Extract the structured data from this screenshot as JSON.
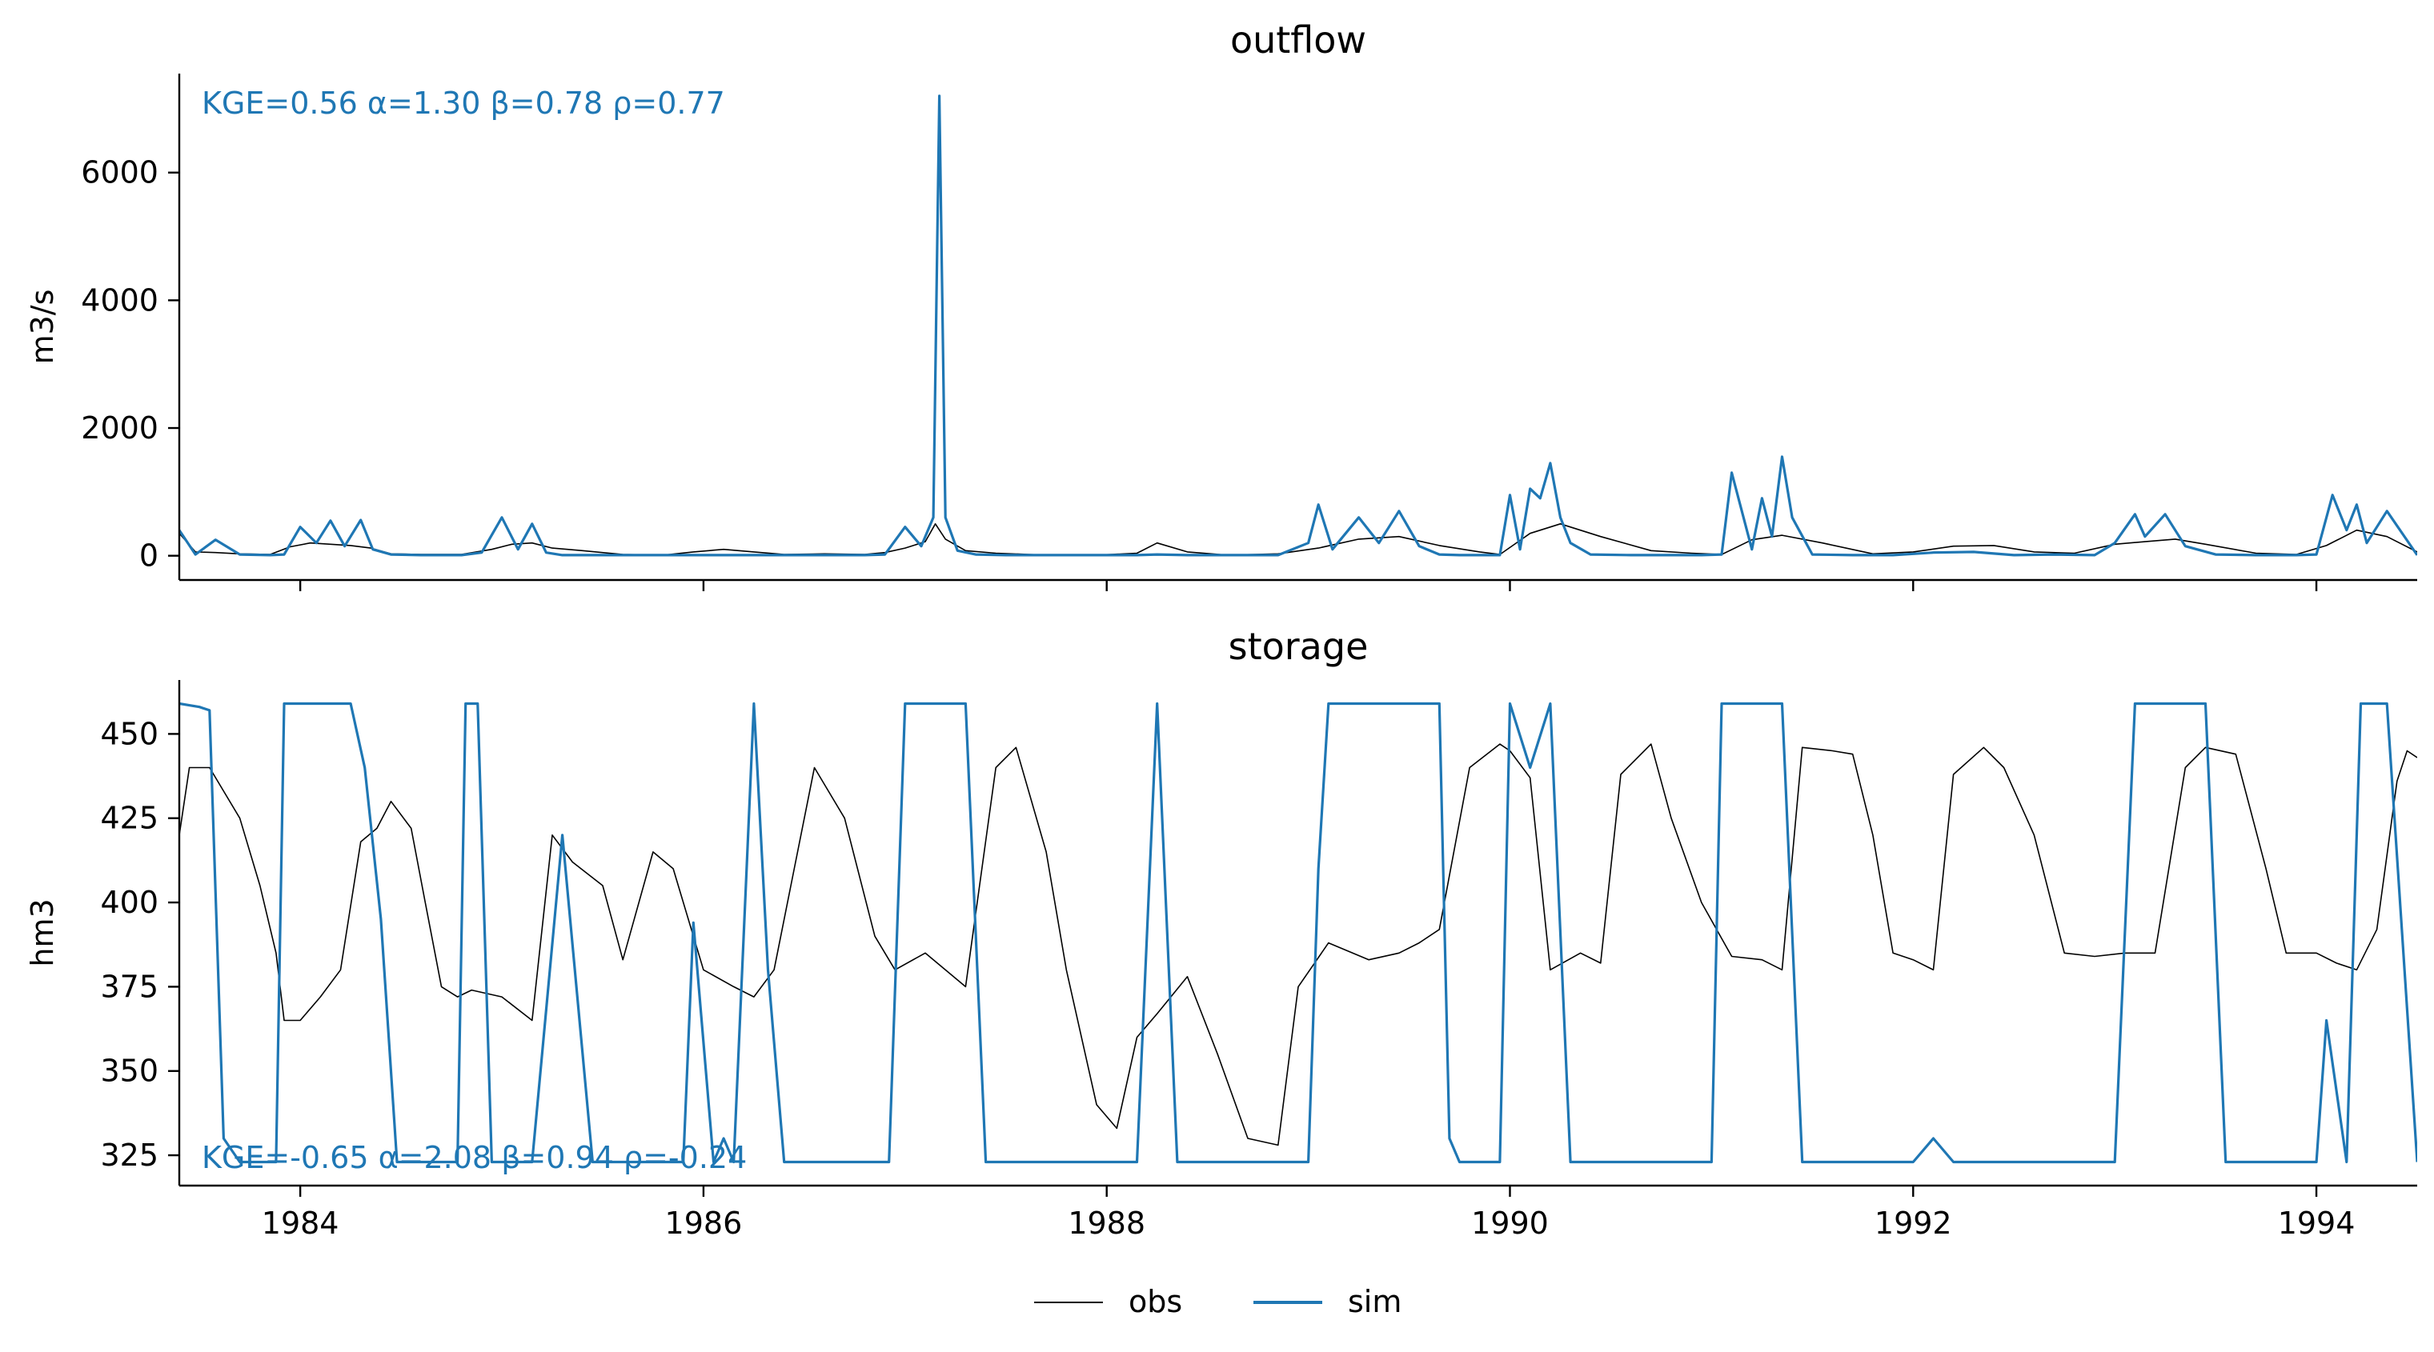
{
  "figure": {
    "legend": {
      "placement": "bottom-center",
      "entries": [
        {
          "label": "obs",
          "color": "#000000"
        },
        {
          "label": "sim",
          "color": "#1f77b4"
        }
      ]
    },
    "colors": {
      "obs": "#000000",
      "sim": "#1f77b4",
      "axis": "#000000",
      "text": "#000000"
    }
  },
  "chart_data": [
    {
      "type": "line",
      "title": "outflow",
      "xlabel": "",
      "ylabel": "m3/s",
      "annotation": "KGE=0.56  α=1.30  β=0.78  ρ=0.77",
      "annotation_placement": "top-left",
      "xlim": [
        1983.4,
        1994.5
      ],
      "ylim": [
        -380,
        7550
      ],
      "yticks": [
        0,
        2000,
        4000,
        6000
      ],
      "xticks": [
        1984,
        1986,
        1988,
        1990,
        1992,
        1994
      ],
      "show_xtick_labels": false,
      "grid": false,
      "series": [
        {
          "name": "obs",
          "color": "#000000",
          "x": [
            1983.4,
            1983.48,
            1983.58,
            1983.7,
            1983.85,
            1983.95,
            1984.05,
            1984.15,
            1984.25,
            1984.35,
            1984.45,
            1984.6,
            1984.8,
            1984.95,
            1985.05,
            1985.15,
            1985.25,
            1985.4,
            1985.6,
            1985.8,
            1985.95,
            1986.1,
            1986.25,
            1986.4,
            1986.6,
            1986.8,
            1986.9,
            1987.0,
            1987.1,
            1987.15,
            1987.2,
            1987.3,
            1987.45,
            1987.7,
            1987.95,
            1988.15,
            1988.25,
            1988.4,
            1988.6,
            1988.85,
            1989.05,
            1989.25,
            1989.45,
            1989.65,
            1989.85,
            1989.95,
            1990.1,
            1990.25,
            1990.45,
            1990.7,
            1990.9,
            1991.05,
            1991.2,
            1991.35,
            1991.55,
            1991.8,
            1992.0,
            1992.2,
            1992.4,
            1992.6,
            1992.8,
            1993.0,
            1993.15,
            1993.3,
            1993.45,
            1993.7,
            1993.9,
            1994.05,
            1994.2,
            1994.35,
            1994.5
          ],
          "y": [
            350,
            60,
            50,
            30,
            20,
            140,
            200,
            180,
            160,
            120,
            30,
            20,
            20,
            100,
            180,
            200,
            120,
            80,
            20,
            10,
            60,
            100,
            60,
            20,
            30,
            20,
            50,
            120,
            220,
            500,
            260,
            80,
            40,
            10,
            10,
            40,
            200,
            60,
            10,
            30,
            120,
            260,
            300,
            160,
            60,
            20,
            350,
            500,
            300,
            80,
            40,
            20,
            250,
            320,
            200,
            30,
            60,
            150,
            160,
            60,
            40,
            180,
            220,
            260,
            180,
            40,
            20,
            160,
            400,
            300,
            60
          ]
        },
        {
          "name": "sim",
          "color": "#1f77b4",
          "x": [
            1983.4,
            1983.48,
            1983.58,
            1983.7,
            1983.85,
            1983.92,
            1984.0,
            1984.08,
            1984.15,
            1984.22,
            1984.3,
            1984.36,
            1984.45,
            1984.6,
            1984.8,
            1984.9,
            1985.0,
            1985.08,
            1985.15,
            1985.22,
            1985.3,
            1985.4,
            1985.6,
            1985.8,
            1985.95,
            1986.1,
            1986.25,
            1986.4,
            1986.6,
            1986.8,
            1986.9,
            1987.0,
            1987.08,
            1987.14,
            1987.17,
            1987.2,
            1987.26,
            1987.35,
            1987.5,
            1987.7,
            1987.95,
            1988.15,
            1988.25,
            1988.4,
            1988.6,
            1988.85,
            1989.0,
            1989.05,
            1989.12,
            1989.25,
            1989.35,
            1989.45,
            1989.55,
            1989.65,
            1989.75,
            1989.85,
            1989.95,
            1990.0,
            1990.05,
            1990.1,
            1990.15,
            1990.2,
            1990.25,
            1990.3,
            1990.4,
            1990.6,
            1990.8,
            1990.95,
            1991.05,
            1991.1,
            1991.2,
            1991.25,
            1991.3,
            1991.35,
            1991.4,
            1991.5,
            1991.7,
            1991.9,
            1992.1,
            1992.3,
            1992.5,
            1992.7,
            1992.9,
            1993.0,
            1993.1,
            1993.15,
            1993.25,
            1993.35,
            1993.5,
            1993.7,
            1993.9,
            1994.0,
            1994.08,
            1994.15,
            1994.2,
            1994.25,
            1994.35,
            1994.5
          ],
          "y": [
            400,
            20,
            250,
            20,
            10,
            20,
            450,
            200,
            550,
            150,
            560,
            100,
            20,
            10,
            10,
            50,
            600,
            100,
            500,
            50,
            10,
            10,
            10,
            10,
            10,
            10,
            10,
            10,
            10,
            10,
            20,
            450,
            150,
            600,
            7200,
            600,
            80,
            20,
            10,
            10,
            10,
            10,
            20,
            10,
            10,
            10,
            200,
            800,
            100,
            600,
            200,
            700,
            150,
            20,
            10,
            10,
            10,
            950,
            100,
            1050,
            900,
            1450,
            600,
            200,
            20,
            10,
            10,
            10,
            20,
            1300,
            100,
            900,
            300,
            1550,
            600,
            20,
            10,
            10,
            50,
            60,
            10,
            20,
            10,
            200,
            650,
            300,
            650,
            150,
            20,
            10,
            10,
            20,
            950,
            400,
            800,
            200,
            700,
            10
          ]
        }
      ]
    },
    {
      "type": "line",
      "title": "storage",
      "xlabel": "",
      "ylabel": "hm3",
      "annotation": "KGE=-0.65  α=2.08  β=0.94  ρ=-0.24",
      "annotation_placement": "bottom-left",
      "xlim": [
        1983.4,
        1994.5
      ],
      "ylim": [
        316,
        466
      ],
      "yticks": [
        325,
        350,
        375,
        400,
        425,
        450
      ],
      "xticks": [
        1984,
        1986,
        1988,
        1990,
        1992,
        1994
      ],
      "show_xtick_labels": true,
      "grid": false,
      "series": [
        {
          "name": "obs",
          "color": "#000000",
          "x": [
            1983.4,
            1983.45,
            1983.55,
            1983.7,
            1983.8,
            1983.88,
            1983.92,
            1984.0,
            1984.1,
            1984.2,
            1984.3,
            1984.38,
            1984.45,
            1984.55,
            1984.62,
            1984.7,
            1984.78,
            1984.85,
            1985.0,
            1985.15,
            1985.25,
            1985.35,
            1985.5,
            1985.6,
            1985.75,
            1985.85,
            1986.0,
            1986.15,
            1986.25,
            1986.35,
            1986.45,
            1986.55,
            1986.7,
            1986.85,
            1986.95,
            1987.1,
            1987.3,
            1987.45,
            1987.55,
            1987.7,
            1987.8,
            1987.95,
            1988.05,
            1988.15,
            1988.25,
            1988.4,
            1988.55,
            1988.7,
            1988.85,
            1988.95,
            1989.1,
            1989.3,
            1989.45,
            1989.55,
            1989.65,
            1989.8,
            1989.95,
            1990.0,
            1990.1,
            1990.2,
            1990.35,
            1990.45,
            1990.55,
            1990.7,
            1990.8,
            1990.95,
            1991.1,
            1991.25,
            1991.35,
            1991.45,
            1991.6,
            1991.7,
            1991.8,
            1991.9,
            1992.0,
            1992.1,
            1992.2,
            1992.35,
            1992.45,
            1992.6,
            1992.75,
            1992.9,
            1993.05,
            1993.2,
            1993.35,
            1993.45,
            1993.6,
            1993.75,
            1993.85,
            1994.0,
            1994.1,
            1994.2,
            1994.3,
            1994.4,
            1994.45,
            1994.5
          ],
          "y": [
            420,
            440,
            440,
            425,
            405,
            385,
            365,
            365,
            372,
            380,
            418,
            422,
            430,
            422,
            400,
            375,
            372,
            374,
            372,
            365,
            420,
            412,
            405,
            383,
            415,
            410,
            380,
            375,
            372,
            380,
            410,
            440,
            425,
            390,
            380,
            385,
            375,
            440,
            446,
            415,
            380,
            340,
            333,
            360,
            367,
            378,
            355,
            330,
            328,
            375,
            388,
            383,
            385,
            388,
            392,
            440,
            447,
            445,
            437,
            380,
            385,
            382,
            438,
            447,
            425,
            400,
            384,
            383,
            380,
            446,
            445,
            444,
            420,
            385,
            383,
            380,
            438,
            446,
            440,
            420,
            385,
            384,
            385,
            385,
            440,
            446,
            444,
            410,
            385,
            385,
            382,
            380,
            392,
            436,
            445,
            443
          ]
        },
        {
          "name": "sim",
          "color": "#1f77b4",
          "x": [
            1983.4,
            1983.5,
            1983.55,
            1983.62,
            1983.7,
            1983.8,
            1983.88,
            1983.92,
            1983.98,
            1984.1,
            1984.25,
            1984.32,
            1984.4,
            1984.48,
            1984.55,
            1984.68,
            1984.78,
            1984.82,
            1984.88,
            1984.95,
            1985.05,
            1985.15,
            1985.3,
            1985.45,
            1985.6,
            1985.75,
            1985.85,
            1985.9,
            1985.95,
            1986.05,
            1986.1,
            1986.15,
            1986.25,
            1986.32,
            1986.4,
            1986.6,
            1986.8,
            1986.92,
            1987.0,
            1987.1,
            1987.2,
            1987.3,
            1987.4,
            1987.45,
            1987.6,
            1987.8,
            1988.0,
            1988.15,
            1988.25,
            1988.35,
            1988.4,
            1988.5,
            1988.7,
            1988.9,
            1989.0,
            1989.05,
            1989.1,
            1989.2,
            1989.35,
            1989.5,
            1989.65,
            1989.7,
            1989.75,
            1989.85,
            1989.95,
            1990.0,
            1990.1,
            1990.2,
            1990.3,
            1990.4,
            1990.5,
            1990.7,
            1990.9,
            1991.0,
            1991.05,
            1991.15,
            1991.25,
            1991.35,
            1991.45,
            1991.55,
            1991.7,
            1991.9,
            1992.0,
            1992.1,
            1992.2,
            1992.3,
            1992.4,
            1992.6,
            1992.8,
            1993.0,
            1993.1,
            1993.2,
            1993.3,
            1993.45,
            1993.55,
            1993.7,
            1993.9,
            1994.0,
            1994.05,
            1994.15,
            1994.22,
            1994.28,
            1994.35,
            1994.5
          ],
          "y": [
            459,
            458,
            457,
            330,
            323,
            323,
            323,
            459,
            459,
            459,
            459,
            440,
            395,
            323,
            323,
            323,
            323,
            459,
            459,
            323,
            323,
            323,
            420,
            323,
            323,
            323,
            323,
            323,
            394,
            323,
            330,
            323,
            459,
            380,
            323,
            323,
            323,
            323,
            459,
            459,
            459,
            459,
            323,
            323,
            323,
            323,
            323,
            323,
            459,
            323,
            323,
            323,
            323,
            323,
            323,
            410,
            459,
            459,
            459,
            459,
            459,
            330,
            323,
            323,
            323,
            459,
            440,
            459,
            323,
            323,
            323,
            323,
            323,
            323,
            459,
            459,
            459,
            459,
            323,
            323,
            323,
            323,
            323,
            330,
            323,
            323,
            323,
            323,
            323,
            323,
            459,
            459,
            459,
            459,
            323,
            323,
            323,
            323,
            365,
            323,
            459,
            459,
            459,
            323
          ]
        }
      ]
    }
  ]
}
